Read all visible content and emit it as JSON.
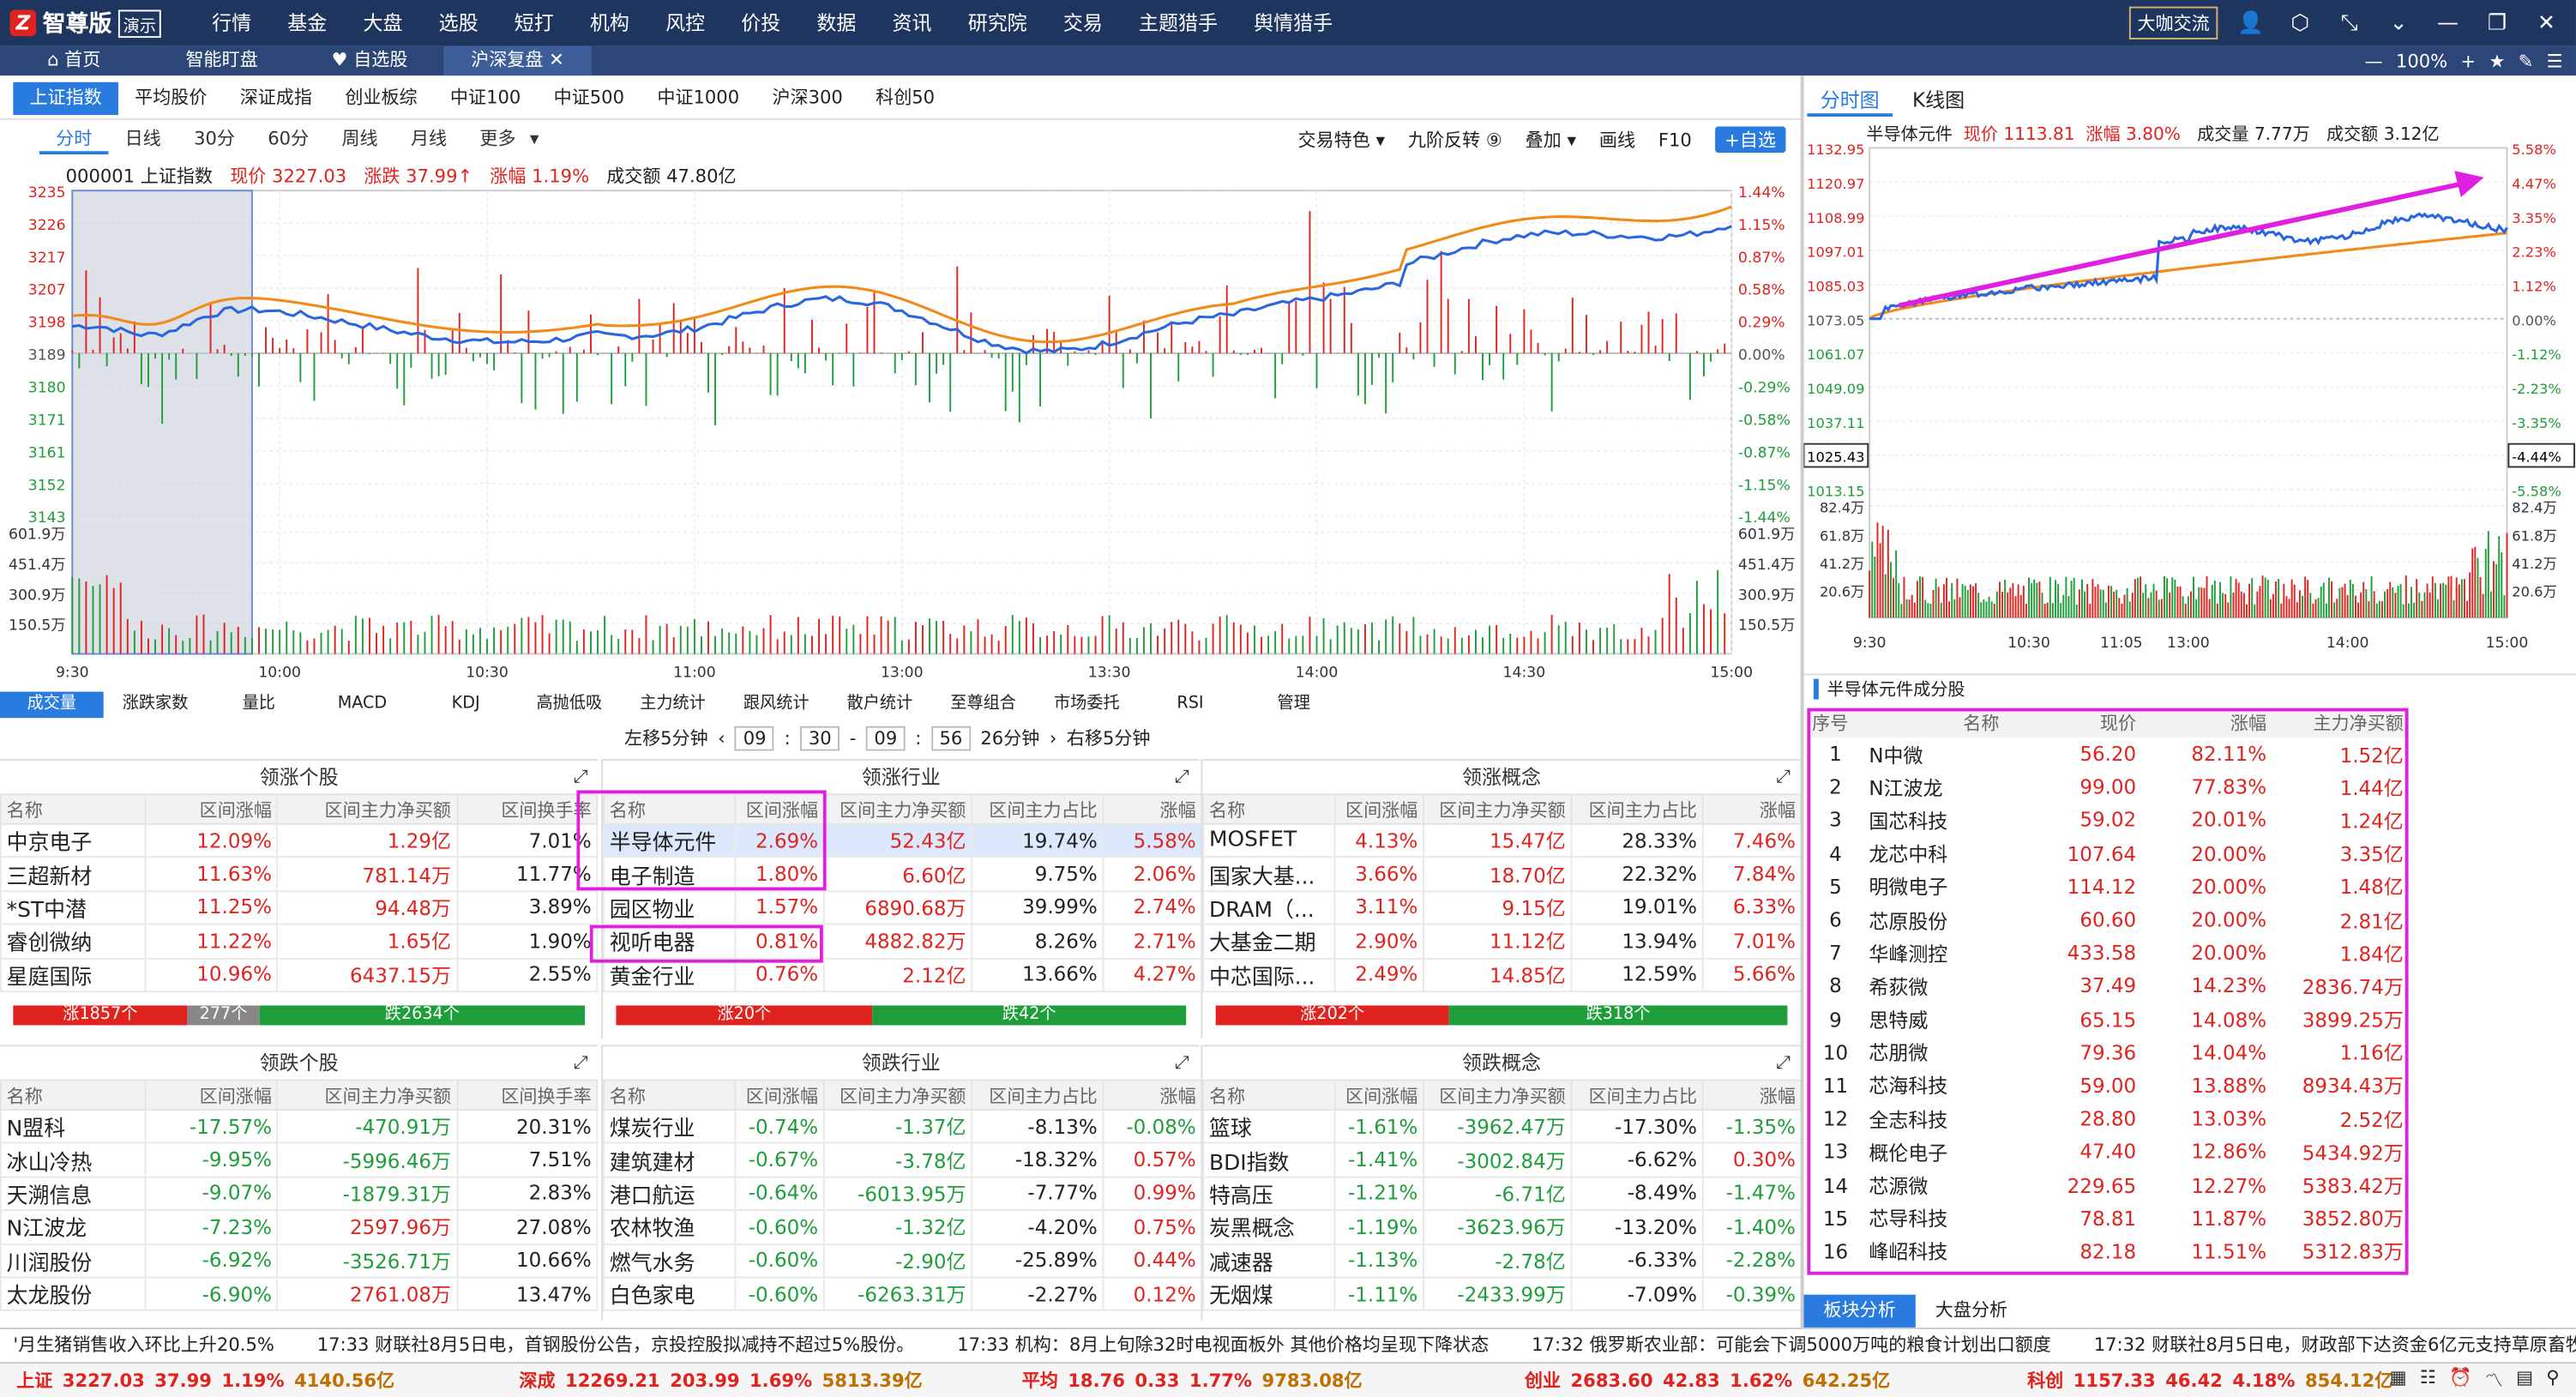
{
  "app": {
    "brand": "智尊版",
    "demo": "演示",
    "menu": [
      "行情",
      "基金",
      "大盘",
      "选股",
      "短打",
      "机构",
      "风控",
      "价投",
      "数据",
      "资讯",
      "研究院",
      "交易",
      "主题猎手",
      "舆情猎手"
    ],
    "right_button": "大咖交流"
  },
  "tabs": {
    "items": [
      "首页",
      "智能盯盘",
      "自选股",
      "沪深复盘"
    ],
    "zoom": "100%"
  },
  "index_tabs": [
    "上证指数",
    "平均股价",
    "深证成指",
    "创业板综",
    "中证100",
    "中证500",
    "中证1000",
    "沪深300",
    "科创50"
  ],
  "periods": [
    "分时",
    "日线",
    "30分",
    "60分",
    "周线",
    "月线",
    "更多"
  ],
  "chart_opts": [
    "交易特色",
    "九阶反转",
    "叠加",
    "画线",
    "F10",
    "+自选"
  ],
  "main_info": {
    "code": "000001 上证指数",
    "price": "现价 3227.03",
    "change": "涨跌 37.99↑",
    "pct": "涨幅 1.19%",
    "volume": "成交额 47.80亿"
  },
  "main_yleft": [
    "3235",
    "3226",
    "3217",
    "3207",
    "3198",
    "3189",
    "3180",
    "3171",
    "3161",
    "3152",
    "3143"
  ],
  "main_yright": [
    "1.44%",
    "1.15%",
    "0.87%",
    "0.58%",
    "0.29%",
    "0.00%",
    "-0.29%",
    "-0.58%",
    "-0.87%",
    "-1.15%",
    "-1.44%"
  ],
  "main_vol": [
    "601.9万",
    "451.4万",
    "300.9万",
    "150.5万"
  ],
  "main_x": [
    "9:30",
    "10:00",
    "10:30",
    "11:00",
    "13:00",
    "13:30",
    "14:00",
    "14:30",
    "15:00"
  ],
  "indicator_tabs": [
    "成交量",
    "涨跌家数",
    "量比",
    "MACD",
    "KDJ",
    "高抛低吸",
    "主力统计",
    "跟风统计",
    "散户统计",
    "至尊组合",
    "市场委托",
    "RSI",
    "管理"
  ],
  "timebar": {
    "left": "左移5分钟",
    "h1": "09",
    "m1": "30",
    "h2": "09",
    "m2": "56",
    "span": "26分钟",
    "right": "右移5分钟"
  },
  "panels": {
    "lead_stock": {
      "title": "领涨个股",
      "cols": [
        "名称",
        "区间涨幅",
        "区间主力净买额",
        "区间换手率"
      ],
      "rows": [
        [
          "中京电子",
          "12.09%",
          "1.29亿",
          "7.01%"
        ],
        [
          "三超新材",
          "11.63%",
          "781.14万",
          "11.77%"
        ],
        [
          "*ST中潜",
          "11.25%",
          "94.48万",
          "3.89%"
        ],
        [
          "睿创微纳",
          "11.22%",
          "1.65亿",
          "1.90%"
        ],
        [
          "星庭国际",
          "10.96%",
          "6437.15万",
          "2.55%"
        ]
      ],
      "bar": [
        "涨1857个",
        "277个",
        "跌2634个"
      ]
    },
    "lead_ind": {
      "title": "领涨行业",
      "cols": [
        "名称",
        "区间涨幅",
        "区间主力净买额",
        "区间主力占比",
        "涨幅"
      ],
      "rows": [
        [
          "半导体元件",
          "2.69%",
          "52.43亿",
          "19.74%",
          "5.58%"
        ],
        [
          "电子制造",
          "1.80%",
          "6.60亿",
          "9.75%",
          "2.06%"
        ],
        [
          "园区物业",
          "1.57%",
          "6890.68万",
          "39.99%",
          "2.74%"
        ],
        [
          "视听电器",
          "0.81%",
          "4882.82万",
          "8.26%",
          "2.71%"
        ],
        [
          "黄金行业",
          "0.76%",
          "2.12亿",
          "13.66%",
          "4.27%"
        ]
      ],
      "bar": [
        "涨20个",
        "跌42个"
      ]
    },
    "lead_con": {
      "title": "领涨概念",
      "cols": [
        "名称",
        "区间涨幅",
        "区间主力净买额",
        "区间主力占比",
        "涨幅"
      ],
      "rows": [
        [
          "MOSFET",
          "4.13%",
          "15.47亿",
          "28.33%",
          "7.46%"
        ],
        [
          "国家大基...",
          "3.66%",
          "18.70亿",
          "22.32%",
          "7.84%"
        ],
        [
          "DRAM（...",
          "3.11%",
          "9.15亿",
          "19.01%",
          "6.33%"
        ],
        [
          "大基金二期",
          "2.90%",
          "11.12亿",
          "13.94%",
          "7.01%"
        ],
        [
          "中芯国际...",
          "2.49%",
          "14.85亿",
          "12.59%",
          "5.66%"
        ]
      ],
      "bar": [
        "涨202个",
        "跌318个"
      ]
    },
    "lag_stock": {
      "title": "领跌个股",
      "cols": [
        "名称",
        "区间涨幅",
        "区间主力净买额",
        "区间换手率"
      ],
      "rows": [
        [
          "N盟科",
          "-17.57%",
          "-470.91万",
          "20.31%"
        ],
        [
          "冰山冷热",
          "-9.95%",
          "-5996.46万",
          "7.51%"
        ],
        [
          "天溯信息",
          "-9.07%",
          "-1879.31万",
          "2.83%"
        ],
        [
          "N江波龙",
          "-7.23%",
          "2597.96万",
          "27.08%"
        ],
        [
          "川润股份",
          "-6.92%",
          "-3526.71万",
          "10.66%"
        ],
        [
          "太龙股份",
          "-6.90%",
          "2761.08万",
          "13.47%"
        ]
      ]
    },
    "lag_ind": {
      "title": "领跌行业",
      "cols": [
        "名称",
        "区间涨幅",
        "区间主力净买额",
        "区间主力占比",
        "涨幅"
      ],
      "rows": [
        [
          "煤炭行业",
          "-0.74%",
          "-1.37亿",
          "-8.13%",
          "-0.08%"
        ],
        [
          "建筑建材",
          "-0.67%",
          "-3.78亿",
          "-18.32%",
          "0.57%"
        ],
        [
          "港口航运",
          "-0.64%",
          "-6013.95万",
          "-7.77%",
          "0.99%"
        ],
        [
          "农林牧渔",
          "-0.60%",
          "-1.32亿",
          "-4.20%",
          "0.75%"
        ],
        [
          "燃气水务",
          "-0.60%",
          "-2.90亿",
          "-25.89%",
          "0.44%"
        ],
        [
          "白色家电",
          "-0.60%",
          "-6263.31万",
          "-2.27%",
          "0.12%"
        ]
      ]
    },
    "lag_con": {
      "title": "领跌概念",
      "cols": [
        "名称",
        "区间涨幅",
        "区间主力净买额",
        "区间主力占比",
        "涨幅"
      ],
      "rows": [
        [
          "篮球",
          "-1.61%",
          "-3962.47万",
          "-17.30%",
          "-1.35%"
        ],
        [
          "BDI指数",
          "-1.41%",
          "-3002.84万",
          "-6.62%",
          "0.30%"
        ],
        [
          "特高压",
          "-1.21%",
          "-6.71亿",
          "-8.49%",
          "-1.47%"
        ],
        [
          "炭黑概念",
          "-1.19%",
          "-3623.96万",
          "-13.20%",
          "-1.40%"
        ],
        [
          "减速器",
          "-1.13%",
          "-2.78亿",
          "-6.33%",
          "-2.28%"
        ],
        [
          "无烟煤",
          "-1.11%",
          "-2433.99万",
          "-7.09%",
          "-0.39%"
        ]
      ]
    }
  },
  "right": {
    "tabs": [
      "分时图",
      "K线图"
    ],
    "info": {
      "name": "半导体元件",
      "price": "现价 1113.81",
      "pct": "涨幅 3.80%",
      "vol": "成交量 7.77万",
      "amt": "成交额 3.12亿"
    },
    "yleft": [
      "1132.95",
      "1120.97",
      "1108.99",
      "1097.01",
      "1085.03",
      "1073.05",
      "1061.07",
      "1049.09",
      "1037.11",
      "1025.43",
      "1013.15"
    ],
    "yright": [
      "5.58%",
      "4.47%",
      "3.35%",
      "2.23%",
      "1.12%",
      "0.00%",
      "-1.12%",
      "-2.23%",
      "-3.35%",
      "-4.44%",
      "-5.58%"
    ],
    "vol": [
      "82.4万",
      "61.8万",
      "41.2万",
      "20.6万"
    ],
    "x": [
      "9:30",
      "10:30",
      "11:05",
      "13:00",
      "14:00",
      "15:00"
    ],
    "comp_title": "半导体元件成分股",
    "cols": [
      "序号",
      "名称",
      "现价",
      "涨幅",
      "主力净买额"
    ],
    "rows": [
      [
        "1",
        "N中微",
        "56.20",
        "82.11%",
        "1.52亿"
      ],
      [
        "2",
        "N江波龙",
        "99.00",
        "77.83%",
        "1.44亿"
      ],
      [
        "3",
        "国芯科技",
        "59.02",
        "20.01%",
        "1.24亿"
      ],
      [
        "4",
        "龙芯中科",
        "107.64",
        "20.00%",
        "3.35亿"
      ],
      [
        "5",
        "明微电子",
        "114.12",
        "20.00%",
        "1.48亿"
      ],
      [
        "6",
        "芯原股份",
        "60.60",
        "20.00%",
        "2.81亿"
      ],
      [
        "7",
        "华峰测控",
        "433.58",
        "20.00%",
        "1.84亿"
      ],
      [
        "8",
        "希荻微",
        "37.49",
        "14.23%",
        "2836.74万"
      ],
      [
        "9",
        "思特威",
        "65.15",
        "14.08%",
        "3899.25万"
      ],
      [
        "10",
        "芯朋微",
        "79.36",
        "14.04%",
        "1.16亿"
      ],
      [
        "11",
        "芯海科技",
        "59.00",
        "13.88%",
        "8934.43万"
      ],
      [
        "12",
        "全志科技",
        "28.80",
        "13.03%",
        "2.52亿"
      ],
      [
        "13",
        "概伦电子",
        "47.40",
        "12.86%",
        "5434.92万"
      ],
      [
        "14",
        "芯源微",
        "229.65",
        "12.27%",
        "5383.42万"
      ],
      [
        "15",
        "芯导科技",
        "78.81",
        "11.87%",
        "3852.80万"
      ],
      [
        "16",
        "峰岹科技",
        "82.18",
        "11.51%",
        "5312.83万"
      ]
    ],
    "bottom_tabs": [
      "板块分析",
      "大盘分析"
    ]
  },
  "news": [
    "'月生猪销售收入环比上升20.5%",
    "17:33 财联社8月5日电，首钢股份公告，京投控股拟减持不超过5%股份。",
    "17:33 机构：8月上旬除32时电视面板外 其他价格均呈现下降状态",
    "17:32 俄罗斯农业部：可能会下调5000万吨的粮食计划出口额度",
    "17:32 财联社8月5日电，财政部下达资金6亿元支持草原畜牧业转型升级"
  ],
  "status": [
    [
      "上证",
      "3227.03",
      "37.99",
      "1.19%",
      "4140.56亿"
    ],
    [
      "深成",
      "12269.21",
      "203.99",
      "1.69%",
      "5813.39亿"
    ],
    [
      "平均",
      "18.76",
      "0.33",
      "1.77%",
      "9783.08亿"
    ],
    [
      "创业",
      "2683.60",
      "42.83",
      "1.62%",
      "642.25亿"
    ],
    [
      "科创",
      "1157.33",
      "46.42",
      "4.18%",
      "854.12亿"
    ]
  ],
  "colors": {
    "up": "#e0231f",
    "down": "#1e9e3a",
    "price_line": "#2a66e0",
    "avg_line": "#f28a1a",
    "highlight": "#e020e0"
  }
}
